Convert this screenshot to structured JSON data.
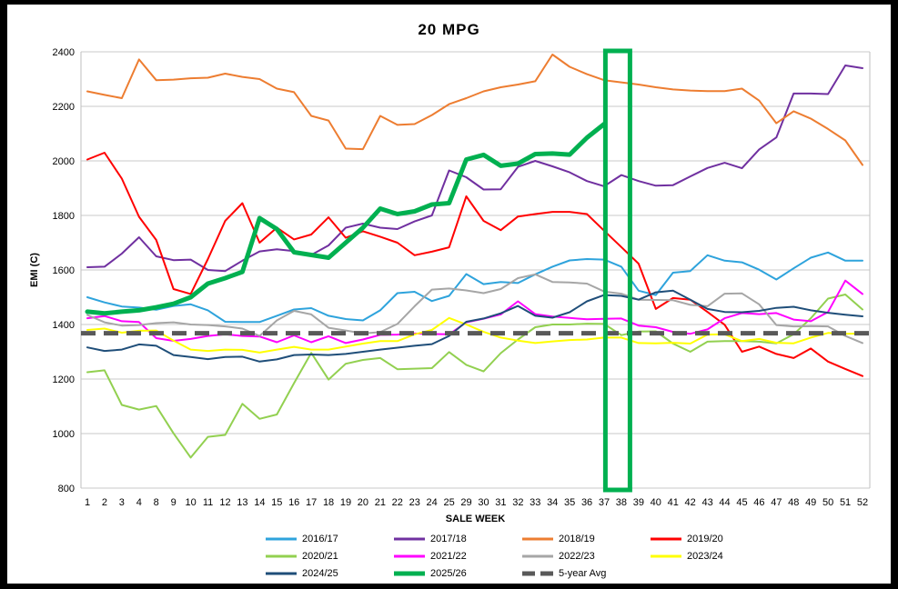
{
  "window": {
    "title": "20 MPG"
  },
  "chart_data": {
    "type": "line",
    "title": "20 MPG",
    "xlabel": "SALE WEEK",
    "ylabel": "EMI (C)",
    "ylim": [
      800,
      2400
    ],
    "ytick_step": 200,
    "grid": true,
    "legend_position": "bottom",
    "x_categories": [
      "1",
      "2",
      "3",
      "4",
      "8",
      "9",
      "10",
      "11",
      "12",
      "13",
      "14",
      "15",
      "16",
      "17",
      "18",
      "19",
      "20",
      "21",
      "22",
      "23",
      "24",
      "25",
      "29",
      "30",
      "31",
      "32",
      "33",
      "34",
      "35",
      "36",
      "37",
      "38",
      "39",
      "40",
      "41",
      "42",
      "43",
      "44",
      "45",
      "46",
      "47",
      "48",
      "49",
      "50",
      "51",
      "52"
    ],
    "series": [
      {
        "name": "2016/17",
        "color": "#2EA3DC",
        "width": 2,
        "values": [
          1500,
          1481,
          1466,
          1462,
          1454,
          1468,
          1474,
          1452,
          1410,
          1409,
          1409,
          1432,
          1455,
          1460,
          1432,
          1420,
          1415,
          1452,
          1515,
          1520,
          1486,
          1505,
          1585,
          1548,
          1556,
          1552,
          1584,
          1612,
          1635,
          1640,
          1638,
          1612,
          1524,
          1508,
          1590,
          1596,
          1654,
          1634,
          1628,
          1601,
          1565,
          1606,
          1645,
          1664,
          1634,
          1634
        ]
      },
      {
        "name": "2017/18",
        "color": "#7030A0",
        "width": 2,
        "values": [
          1610,
          1612,
          1660,
          1720,
          1650,
          1636,
          1638,
          1600,
          1596,
          1634,
          1668,
          1676,
          1669,
          1655,
          1690,
          1755,
          1770,
          1755,
          1750,
          1778,
          1800,
          1965,
          1940,
          1895,
          1896,
          1978,
          2000,
          1980,
          1958,
          1926,
          1907,
          1948,
          1926,
          1909,
          1911,
          1943,
          1974,
          1993,
          1973,
          2042,
          2086,
          2247,
          2247,
          2245,
          2350,
          2340
        ]
      },
      {
        "name": "2018/19",
        "color": "#ED7D31",
        "width": 2,
        "values": [
          2255,
          2242,
          2230,
          2372,
          2296,
          2298,
          2303,
          2305,
          2320,
          2308,
          2300,
          2265,
          2252,
          2165,
          2148,
          2045,
          2043,
          2165,
          2132,
          2135,
          2168,
          2208,
          2230,
          2255,
          2270,
          2280,
          2292,
          2390,
          2345,
          2318,
          2296,
          2288,
          2280,
          2270,
          2262,
          2258,
          2256,
          2256,
          2265,
          2221,
          2138,
          2182,
          2155,
          2117,
          2075,
          1985
        ]
      },
      {
        "name": "2019/20",
        "color": "#FF0000",
        "width": 2,
        "values": [
          2005,
          2030,
          1935,
          1795,
          1710,
          1530,
          1512,
          1640,
          1780,
          1845,
          1700,
          1755,
          1712,
          1730,
          1793,
          1718,
          1742,
          1722,
          1700,
          1654,
          1667,
          1683,
          1870,
          1780,
          1746,
          1796,
          1805,
          1813,
          1813,
          1805,
          1744,
          1684,
          1623,
          1457,
          1497,
          1491,
          1446,
          1399,
          1300,
          1319,
          1292,
          1277,
          1312,
          1264,
          1237,
          1211
        ]
      },
      {
        "name": "2020/21",
        "color": "#92D050",
        "width": 2,
        "values": [
          1225,
          1232,
          1105,
          1088,
          1101,
          1001,
          912,
          988,
          995,
          1109,
          1054,
          1070,
          1185,
          1296,
          1198,
          1256,
          1270,
          1277,
          1236,
          1238,
          1240,
          1299,
          1252,
          1228,
          1295,
          1345,
          1390,
          1400,
          1400,
          1403,
          1402,
          1361,
          1374,
          1375,
          1330,
          1300,
          1337,
          1339,
          1339,
          1337,
          1331,
          1364,
          1423,
          1495,
          1510,
          1455
        ]
      },
      {
        "name": "2021/22",
        "color": "#FF00FF",
        "width": 2,
        "values": [
          1423,
          1431,
          1412,
          1409,
          1350,
          1340,
          1347,
          1358,
          1364,
          1358,
          1356,
          1335,
          1360,
          1335,
          1357,
          1332,
          1345,
          1362,
          1363,
          1367,
          1365,
          1364,
          1408,
          1421,
          1437,
          1485,
          1438,
          1429,
          1424,
          1419,
          1421,
          1422,
          1396,
          1390,
          1373,
          1366,
          1382,
          1423,
          1442,
          1438,
          1442,
          1418,
          1412,
          1446,
          1561,
          1512
        ]
      },
      {
        "name": "2022/23",
        "color": "#A6A6A6",
        "width": 2,
        "values": [
          1435,
          1408,
          1396,
          1398,
          1405,
          1408,
          1400,
          1398,
          1393,
          1385,
          1358,
          1415,
          1450,
          1437,
          1388,
          1378,
          1367,
          1372,
          1402,
          1467,
          1528,
          1532,
          1525,
          1515,
          1530,
          1570,
          1584,
          1556,
          1554,
          1550,
          1521,
          1513,
          1491,
          1490,
          1489,
          1472,
          1467,
          1513,
          1514,
          1474,
          1398,
          1393,
          1394,
          1393,
          1358,
          1332
        ]
      },
      {
        "name": "2023/24",
        "color": "#FFFF00",
        "width": 2,
        "values": [
          1380,
          1385,
          1370,
          1377,
          1378,
          1341,
          1308,
          1303,
          1308,
          1307,
          1297,
          1308,
          1318,
          1308,
          1308,
          1319,
          1330,
          1339,
          1339,
          1364,
          1380,
          1424,
          1400,
          1373,
          1352,
          1341,
          1332,
          1338,
          1343,
          1345,
          1352,
          1352,
          1332,
          1331,
          1333,
          1330,
          1363,
          1364,
          1339,
          1347,
          1333,
          1331,
          1352,
          1369,
          1366,
          1367
        ]
      },
      {
        "name": "2024/25",
        "color": "#1F4E79",
        "width": 2,
        "values": [
          1316,
          1303,
          1308,
          1327,
          1322,
          1288,
          1281,
          1273,
          1281,
          1282,
          1264,
          1272,
          1288,
          1290,
          1288,
          1292,
          1300,
          1308,
          1315,
          1322,
          1328,
          1358,
          1410,
          1422,
          1441,
          1468,
          1432,
          1425,
          1445,
          1485,
          1508,
          1505,
          1491,
          1518,
          1524,
          1491,
          1457,
          1446,
          1445,
          1450,
          1461,
          1465,
          1452,
          1443,
          1436,
          1430
        ]
      },
      {
        "name": "2025/26",
        "color": "#00B050",
        "width": 5,
        "values": [
          1447,
          1441,
          1447,
          1452,
          1463,
          1476,
          1500,
          1550,
          1570,
          1593,
          1790,
          1750,
          1665,
          1655,
          1645,
          1700,
          1755,
          1825,
          1805,
          1815,
          1840,
          1845,
          2005,
          2022,
          1982,
          1990,
          2025,
          2027,
          2023,
          2085,
          2135,
          null,
          null,
          null,
          null,
          null,
          null,
          null,
          null,
          null,
          null,
          null,
          null,
          null,
          null,
          null
        ]
      },
      {
        "name": "5-year Avg",
        "color": "#595959",
        "width": 5,
        "dashed": true,
        "constant": 1368
      }
    ],
    "highlight": {
      "week": "38",
      "color": "#00B050"
    }
  },
  "legend": {
    "rows": [
      [
        "2016/17",
        "2017/18",
        "2018/19",
        "2019/20"
      ],
      [
        "2020/21",
        "2021/22",
        "2022/23",
        "2023/24"
      ],
      [
        "2024/25",
        "2025/26",
        "5-year Avg"
      ]
    ]
  },
  "colors": {
    "gridline": "#C9C9C9",
    "plot_border": "#BFBFBF",
    "text": "#000000"
  }
}
